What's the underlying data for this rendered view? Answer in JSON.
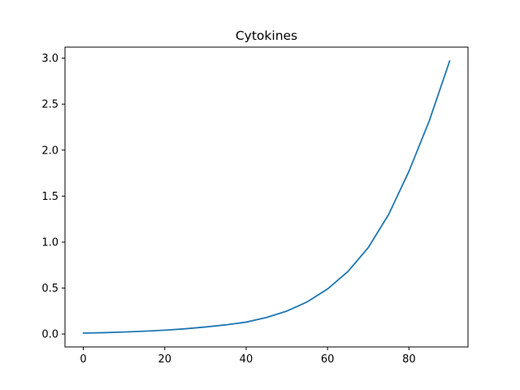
{
  "chart_data": {
    "type": "line",
    "title": "Cytokines",
    "xlabel": "",
    "ylabel": "",
    "xlim": [
      -4.5,
      94.5
    ],
    "ylim": [
      -0.14,
      3.12
    ],
    "xticks": [
      0,
      20,
      40,
      60,
      80
    ],
    "xtick_labels": [
      "0",
      "20",
      "40",
      "60",
      "80"
    ],
    "yticks": [
      0.0,
      0.5,
      1.0,
      1.5,
      2.0,
      2.5,
      3.0
    ],
    "ytick_labels": [
      "0.0",
      "0.5",
      "1.0",
      "1.5",
      "2.0",
      "2.5",
      "3.0"
    ],
    "grid": false,
    "legend": "none",
    "series": [
      {
        "color": "#1f77b4",
        "x": [
          0,
          5,
          10,
          15,
          20,
          25,
          30,
          35,
          40,
          45,
          50,
          55,
          60,
          65,
          70,
          75,
          80,
          85,
          90
        ],
        "y": [
          0.01,
          0.015,
          0.022,
          0.031,
          0.042,
          0.057,
          0.077,
          0.1,
          0.13,
          0.18,
          0.25,
          0.35,
          0.49,
          0.68,
          0.94,
          1.3,
          1.77,
          2.32,
          2.97
        ]
      }
    ]
  }
}
